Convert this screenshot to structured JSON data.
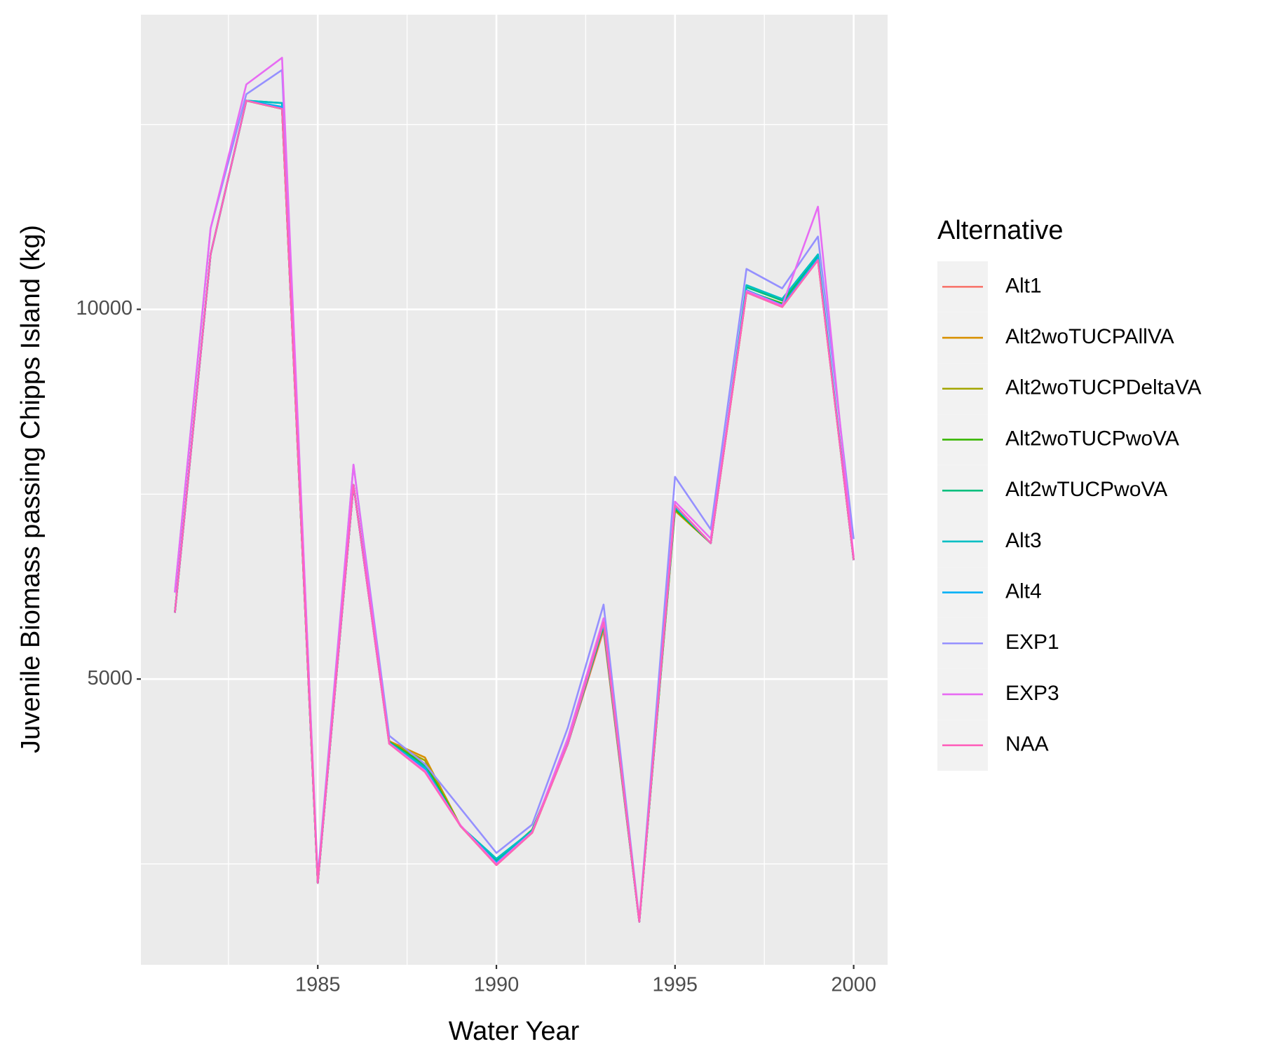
{
  "chart_data": {
    "type": "line",
    "x_label": "Water Year",
    "y_label": "Juvenile Biomass passing Chipps Island (kg)",
    "legend_title": "Alternative",
    "legend_position": "right",
    "grid": true,
    "x": [
      1981,
      1982,
      1983,
      1984,
      1985,
      1986,
      1987,
      1988,
      1989,
      1990,
      1991,
      1992,
      1993,
      1994,
      1995,
      1996,
      1997,
      1998,
      1999,
      2000
    ],
    "xlim": [
      1980.05,
      2000.95
    ],
    "xticks": [
      1985,
      1990,
      1995,
      2000
    ],
    "x_minor_grid": [
      1982.5,
      1987.5,
      1992.5,
      1997.5
    ],
    "ylim": [
      1135,
      13985
    ],
    "yticks": [
      5000,
      10000
    ],
    "y_minor_grid": [
      2500,
      7500,
      12500
    ],
    "series": [
      {
        "name": "Alt1",
        "color": "#F8766D",
        "values": [
          5897,
          10744,
          12823,
          12713,
          2243,
          7626,
          4125,
          3800,
          3009,
          2484,
          2921,
          4125,
          5656,
          1718,
          7352,
          6838,
          10230,
          10033,
          10667,
          6608
        ]
      },
      {
        "name": "Alt2woTUCPAllVA",
        "color": "#D89000",
        "values": [
          5897,
          10744,
          12823,
          12713,
          2243,
          7626,
          4160,
          3939,
          3009,
          2484,
          2921,
          4125,
          5700,
          1718,
          7276,
          6838,
          10230,
          10033,
          10667,
          6608
        ]
      },
      {
        "name": "Alt2woTUCPDeltaVA",
        "color": "#A3A500",
        "values": [
          5897,
          10744,
          12823,
          12713,
          2243,
          7626,
          4150,
          3900,
          3009,
          2500,
          2921,
          4125,
          5710,
          1718,
          7290,
          6838,
          10230,
          10060,
          10680,
          6608
        ]
      },
      {
        "name": "Alt2woTUCPwoVA",
        "color": "#39B600",
        "values": [
          5897,
          10744,
          12823,
          12713,
          2243,
          7626,
          4147,
          3850,
          3009,
          2540,
          2960,
          4125,
          5720,
          1718,
          7300,
          6838,
          10250,
          10080,
          10700,
          6608
        ]
      },
      {
        "name": "Alt2wTUCPwoVA",
        "color": "#00BF7D",
        "values": [
          5897,
          10744,
          12823,
          12790,
          2243,
          7626,
          4147,
          3820,
          3009,
          2550,
          2940,
          4125,
          5730,
          1718,
          7320,
          6838,
          10300,
          10120,
          10720,
          6608
        ]
      },
      {
        "name": "Alt3",
        "color": "#00BFC4",
        "values": [
          5897,
          10744,
          12823,
          12790,
          2243,
          7626,
          4140,
          3800,
          3009,
          2571,
          2950,
          4125,
          5740,
          1718,
          7330,
          6838,
          10328,
          10142,
          10744,
          6608
        ]
      },
      {
        "name": "Alt4",
        "color": "#00B0F6",
        "values": [
          5897,
          10744,
          12823,
          12740,
          2243,
          7626,
          4130,
          3780,
          3009,
          2520,
          2930,
          4125,
          5750,
          1718,
          7340,
          6838,
          10260,
          10060,
          10690,
          6608
        ]
      },
      {
        "name": "EXP1",
        "color": "#9590FF",
        "values": [
          6171,
          11094,
          12910,
          13238,
          2320,
          7899,
          4234,
          3851,
          3249,
          2648,
          3031,
          4344,
          6007,
          1740,
          7735,
          7024,
          10547,
          10284,
          10985,
          6893
        ]
      },
      {
        "name": "EXP3",
        "color": "#E76BF3",
        "values": [
          6171,
          11094,
          13042,
          13403,
          2260,
          7899,
          4130,
          3760,
          3020,
          2500,
          2930,
          4200,
          5821,
          1720,
          7400,
          6900,
          10250,
          10050,
          11389,
          6650
        ]
      },
      {
        "name": "NAA",
        "color": "#FF62BC",
        "values": [
          5897,
          10744,
          12823,
          12713,
          2243,
          7626,
          4125,
          3742,
          3009,
          2484,
          2921,
          4125,
          5766,
          1718,
          7352,
          6838,
          10230,
          10033,
          10667,
          6608
        ]
      }
    ]
  }
}
